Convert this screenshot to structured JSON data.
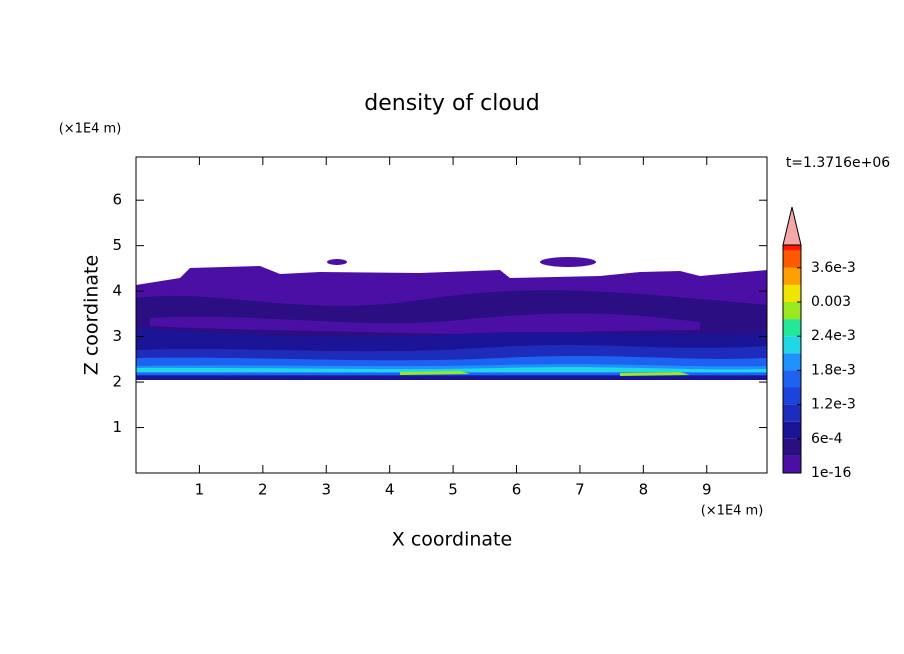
{
  "chart_data": {
    "type": "contour",
    "title": "density of cloud",
    "x_label": "X coordinate",
    "y_label": "Z coordinate",
    "x_unit": "(×1E4 m)",
    "y_unit": "(×1E4 m)",
    "annotation": "t=1.3716e+06",
    "xlim": [
      0,
      9.95
    ],
    "xticks": [
      1,
      2,
      3,
      4,
      5,
      6,
      7,
      8,
      9
    ],
    "ylim": [
      0,
      6.95
    ],
    "yticks": [
      1,
      2,
      3,
      4,
      5,
      6
    ],
    "colorbar": {
      "lim": [
        1e-16,
        0.004
      ],
      "levels": [
        1e-16,
        0.0003,
        0.0006,
        0.0009,
        0.0012,
        0.0015,
        0.0018,
        0.0021,
        0.0024,
        0.0027,
        0.003,
        0.0033,
        0.0036,
        0.0039
      ],
      "colors": [
        "#4b0fa6",
        "#2a0e82",
        "#1c1496",
        "#1e2cbc",
        "#1d44da",
        "#1e62f2",
        "#2090ff",
        "#1ed8e6",
        "#22e89a",
        "#9ae820",
        "#f0e400",
        "#ffa000",
        "#ff5a00",
        "#ff1a00"
      ],
      "extend_color": "#f4a8a8",
      "ticks": [
        1e-16,
        {
          "value": 0.0006,
          "label": "6e-4"
        },
        {
          "value": 0.0012,
          "label": "1.2e-3"
        },
        {
          "value": 0.0018,
          "label": "1.8e-3"
        },
        {
          "value": 0.0024,
          "label": "2.4e-3"
        },
        0.003,
        {
          "value": 0.0036,
          "label": "3.6e-3"
        }
      ]
    }
  }
}
